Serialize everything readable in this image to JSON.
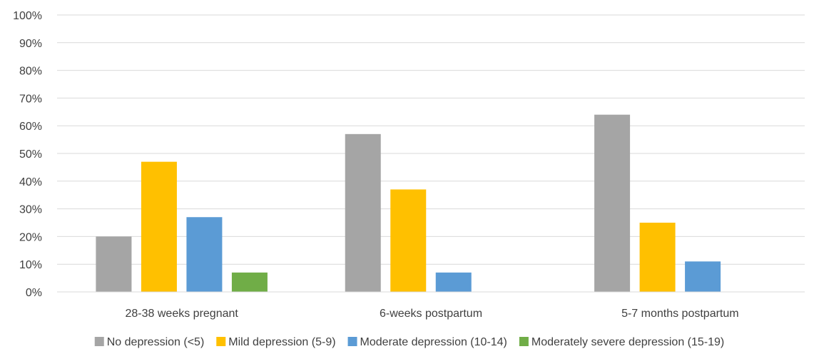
{
  "chart_data": {
    "type": "bar",
    "categories": [
      "28-38 weeks pregnant",
      "6-weeks postpartum",
      "5-7 months postpartum"
    ],
    "series": [
      {
        "name": "No depression (<5)",
        "color": "#A5A5A5",
        "values": [
          20,
          57,
          64
        ]
      },
      {
        "name": "Mild depression (5-9)",
        "color": "#FFC000",
        "values": [
          47,
          37,
          25
        ]
      },
      {
        "name": "Moderate depression (10-14)",
        "color": "#5B9BD5",
        "values": [
          27,
          7,
          11
        ]
      },
      {
        "name": "Moderately severe depression (15-19)",
        "color": "#70AD47",
        "values": [
          7,
          null,
          null
        ]
      }
    ],
    "title": "",
    "xlabel": "",
    "ylabel": "",
    "ylim": [
      0,
      100
    ],
    "yticks": [
      "0%",
      "10%",
      "20%",
      "30%",
      "40%",
      "50%",
      "60%",
      "70%",
      "80%",
      "90%",
      "100%"
    ],
    "grid": true,
    "legend": "bottom"
  }
}
